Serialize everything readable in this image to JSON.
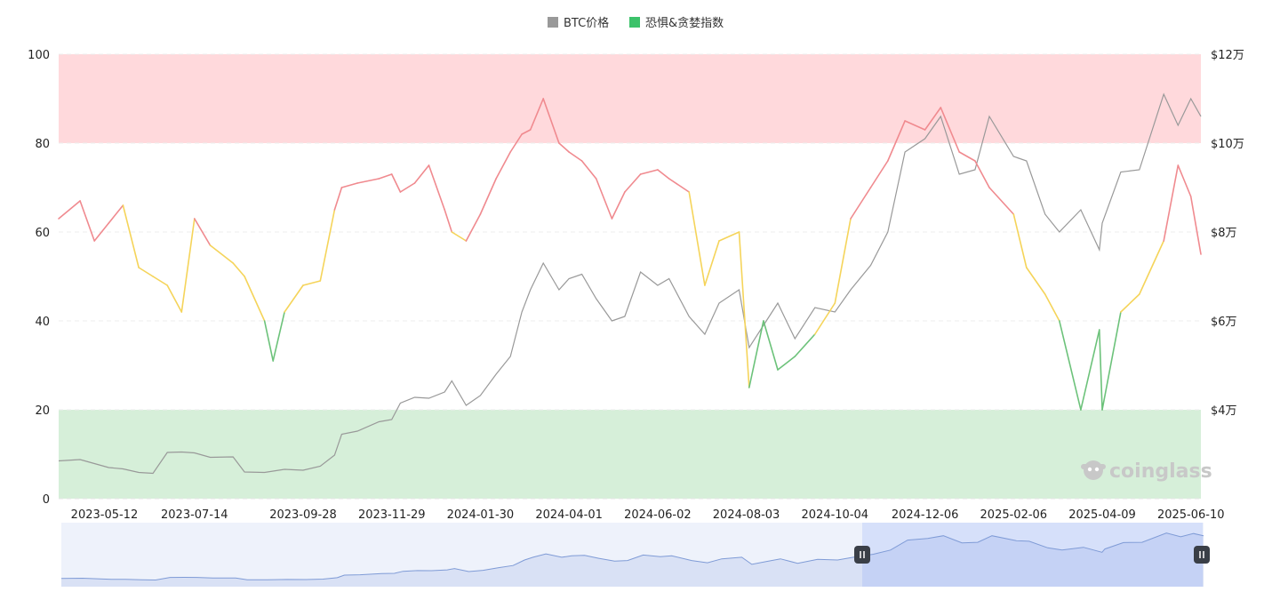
{
  "chart_data": {
    "type": "line",
    "legend": {
      "placement": "top-center",
      "items": [
        {
          "label": "BTC价格",
          "color": "#999999"
        },
        {
          "label": "恐惧&贪婪指数",
          "color": "#3cc26a"
        }
      ]
    },
    "x_ticks": [
      "2023-05-12",
      "2023-07-14",
      "2023-09-28",
      "2023-11-29",
      "2024-01-30",
      "2024-04-01",
      "2024-06-02",
      "2024-08-03",
      "2024-10-04",
      "2024-12-06",
      "2025-02-06",
      "2025-04-09",
      "2025-06-10"
    ],
    "y_left": {
      "min": 0,
      "max": 100,
      "ticks": [
        "0",
        "20",
        "40",
        "60",
        "80",
        "100"
      ]
    },
    "y_right": {
      "min": 20000,
      "max": 120000,
      "ticks": [
        "$4万",
        "$6万",
        "$8万",
        "$10万",
        "$12万"
      ],
      "tick_values": [
        40000,
        60000,
        80000,
        100000,
        120000
      ]
    },
    "zones": [
      {
        "from": 80,
        "to": 100,
        "color": "#ffd9dc"
      },
      {
        "from": 0,
        "to": 20,
        "color": "#d6efd9"
      }
    ],
    "fg_colors": {
      "greed": "#f08a8f",
      "neutral": "#f5d45a",
      "fear": "#6cc27a"
    },
    "grid": "dashed-horizontal",
    "series": [
      {
        "name": "BTC价格",
        "axis": "right",
        "color": "#999999",
        "x": [
          "2023-04-10",
          "2023-04-25",
          "2023-05-05",
          "2023-05-15",
          "2023-05-25",
          "2023-06-05",
          "2023-06-15",
          "2023-06-25",
          "2023-07-05",
          "2023-07-14",
          "2023-07-25",
          "2023-08-10",
          "2023-08-18",
          "2023-09-01",
          "2023-09-15",
          "2023-09-28",
          "2023-10-10",
          "2023-10-20",
          "2023-10-25",
          "2023-11-05",
          "2023-11-20",
          "2023-11-29",
          "2023-12-05",
          "2023-12-15",
          "2023-12-25",
          "2024-01-05",
          "2024-01-10",
          "2024-01-20",
          "2024-01-30",
          "2024-02-10",
          "2024-02-20",
          "2024-02-28",
          "2024-03-05",
          "2024-03-14",
          "2024-03-25",
          "2024-04-01",
          "2024-04-10",
          "2024-04-20",
          "2024-05-01",
          "2024-05-10",
          "2024-05-21",
          "2024-06-02",
          "2024-06-10",
          "2024-06-24",
          "2024-07-05",
          "2024-07-15",
          "2024-07-29",
          "2024-08-05",
          "2024-08-15",
          "2024-08-25",
          "2024-09-06",
          "2024-09-20",
          "2024-10-04",
          "2024-10-15",
          "2024-10-29",
          "2024-11-10",
          "2024-11-22",
          "2024-12-06",
          "2024-12-17",
          "2024-12-30",
          "2025-01-10",
          "2025-01-20",
          "2025-02-06",
          "2025-02-15",
          "2025-02-28",
          "2025-03-10",
          "2025-03-25",
          "2025-04-07",
          "2025-04-09",
          "2025-04-22",
          "2025-05-05",
          "2025-05-22",
          "2025-06-01",
          "2025-06-10",
          "2025-06-17"
        ],
        "values": [
          28500,
          28800,
          27900,
          27000,
          26700,
          25900,
          25700,
          30400,
          30500,
          30300,
          29300,
          29400,
          26000,
          25900,
          26600,
          26400,
          27300,
          29800,
          34500,
          35200,
          37300,
          37800,
          41500,
          42800,
          42600,
          44000,
          46500,
          41000,
          43200,
          48000,
          52000,
          62000,
          67000,
          73000,
          67000,
          69500,
          70500,
          65000,
          60000,
          61000,
          71000,
          68000,
          69500,
          61000,
          57000,
          64000,
          67000,
          54000,
          59000,
          64000,
          56000,
          63000,
          62000,
          67000,
          72500,
          80000,
          98000,
          101000,
          106000,
          93000,
          94000,
          106000,
          97000,
          96000,
          84000,
          80000,
          85000,
          76000,
          82000,
          93500,
          94000,
          111000,
          104000,
          110000,
          106000
        ]
      },
      {
        "name": "恐惧&贪婪指数",
        "axis": "left",
        "x": [
          "2023-04-10",
          "2023-04-25",
          "2023-05-05",
          "2023-05-15",
          "2023-05-25",
          "2023-06-05",
          "2023-06-15",
          "2023-06-25",
          "2023-07-05",
          "2023-07-14",
          "2023-07-25",
          "2023-08-10",
          "2023-08-18",
          "2023-09-01",
          "2023-09-07",
          "2023-09-15",
          "2023-09-28",
          "2023-10-10",
          "2023-10-20",
          "2023-10-25",
          "2023-11-05",
          "2023-11-20",
          "2023-11-29",
          "2023-12-05",
          "2023-12-15",
          "2023-12-25",
          "2024-01-05",
          "2024-01-10",
          "2024-01-20",
          "2024-01-30",
          "2024-02-10",
          "2024-02-20",
          "2024-02-28",
          "2024-03-05",
          "2024-03-14",
          "2024-03-25",
          "2024-04-01",
          "2024-04-10",
          "2024-04-20",
          "2024-05-01",
          "2024-05-10",
          "2024-05-21",
          "2024-06-02",
          "2024-06-10",
          "2024-06-24",
          "2024-07-05",
          "2024-07-15",
          "2024-07-29",
          "2024-08-05",
          "2024-08-15",
          "2024-08-25",
          "2024-09-06",
          "2024-09-20",
          "2024-10-04",
          "2024-10-15",
          "2024-10-29",
          "2024-11-10",
          "2024-11-22",
          "2024-12-06",
          "2024-12-17",
          "2024-12-30",
          "2025-01-10",
          "2025-01-20",
          "2025-02-06",
          "2025-02-15",
          "2025-02-28",
          "2025-03-10",
          "2025-03-25",
          "2025-04-07",
          "2025-04-09",
          "2025-04-22",
          "2025-05-05",
          "2025-05-22",
          "2025-06-01",
          "2025-06-10",
          "2025-06-17"
        ],
        "values": [
          63,
          67,
          58,
          62,
          66,
          52,
          50,
          48,
          42,
          63,
          57,
          53,
          50,
          40,
          31,
          42,
          48,
          49,
          65,
          70,
          71,
          72,
          73,
          69,
          71,
          75,
          65,
          60,
          58,
          64,
          72,
          78,
          82,
          83,
          90,
          80,
          78,
          76,
          72,
          63,
          69,
          73,
          74,
          72,
          69,
          48,
          58,
          60,
          25,
          40,
          29,
          32,
          37,
          44,
          63,
          70,
          76,
          85,
          83,
          88,
          78,
          76,
          70,
          64,
          52,
          46,
          40,
          20,
          38,
          20,
          42,
          46,
          58,
          75,
          68,
          55
        ]
      }
    ]
  }
}
